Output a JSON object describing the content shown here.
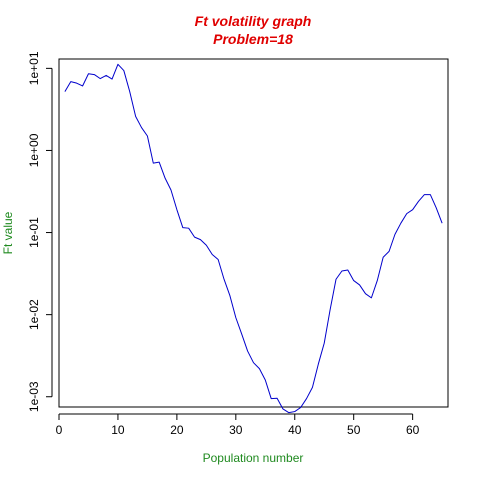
{
  "colors": {
    "title": "#E00000",
    "axis_label": "#1F8A1F",
    "series": "#0000CC",
    "axes": "#000000"
  },
  "chart_data": {
    "type": "line",
    "title": "Ft volatility graph",
    "subtitle": "Problem=18",
    "xlabel": "Population number",
    "ylabel": "Ft value",
    "y_scale": "log",
    "xlim": [
      0,
      66
    ],
    "ylim": [
      0.00075,
      13
    ],
    "grid": false,
    "legend": "none",
    "x_ticks": [
      {
        "value": 0,
        "label": "0"
      },
      {
        "value": 10,
        "label": "10"
      },
      {
        "value": 20,
        "label": "20"
      },
      {
        "value": 30,
        "label": "30"
      },
      {
        "value": 40,
        "label": "40"
      },
      {
        "value": 50,
        "label": "50"
      },
      {
        "value": 60,
        "label": "60"
      }
    ],
    "y_ticks": [
      {
        "value": 0.001,
        "label": "1e-03"
      },
      {
        "value": 0.01,
        "label": "1e-02"
      },
      {
        "value": 0.1,
        "label": "1e-01"
      },
      {
        "value": 1,
        "label": "1e+00"
      },
      {
        "value": 10,
        "label": "1e+01"
      }
    ],
    "series": [
      {
        "x": [
          1,
          2,
          3,
          4,
          5,
          6,
          7,
          8,
          9,
          10,
          11,
          12,
          13,
          14,
          15,
          16,
          17,
          18,
          19,
          20,
          21,
          22,
          23,
          24,
          25,
          26,
          27,
          28,
          29,
          30,
          31,
          32,
          33,
          34,
          35,
          36,
          37,
          38,
          39,
          40,
          41,
          42,
          43,
          44,
          45,
          46,
          47,
          48,
          49,
          50,
          51,
          52,
          53,
          54,
          55,
          56,
          57,
          58,
          59,
          60,
          61,
          62,
          63,
          64,
          65
        ],
        "y": [
          5.2,
          6.9,
          6.6,
          6.1,
          8.6,
          8.4,
          7.5,
          8.2,
          7.4,
          11.2,
          9.4,
          5.2,
          2.6,
          1.9,
          1.5,
          0.7,
          0.72,
          0.46,
          0.33,
          0.19,
          0.115,
          0.113,
          0.088,
          0.082,
          0.07,
          0.054,
          0.047,
          0.027,
          0.017,
          0.0092,
          0.0058,
          0.0036,
          0.0026,
          0.0022,
          0.0016,
          0.00095,
          0.00096,
          0.00071,
          0.00064,
          0.00066,
          0.00074,
          0.00095,
          0.0013,
          0.0025,
          0.0045,
          0.0115,
          0.027,
          0.034,
          0.035,
          0.026,
          0.023,
          0.018,
          0.016,
          0.026,
          0.05,
          0.059,
          0.095,
          0.13,
          0.17,
          0.19,
          0.24,
          0.29,
          0.29,
          0.2,
          0.13
        ]
      }
    ]
  }
}
